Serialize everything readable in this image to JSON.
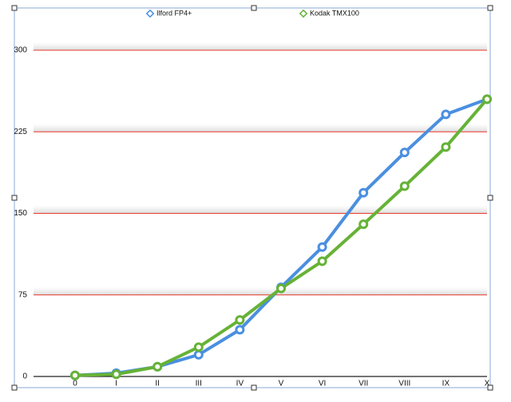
{
  "chart_data": {
    "type": "line",
    "categories": [
      "0",
      "I",
      "II",
      "III",
      "IV",
      "V",
      "VI",
      "VII",
      "VIII",
      "IX",
      "X"
    ],
    "series": [
      {
        "name": "Ilford FP4+",
        "color": "#4a8fe0",
        "values": [
          1,
          3,
          9,
          20,
          43,
          82,
          119,
          169,
          206,
          241,
          255
        ]
      },
      {
        "name": "Kodak  TMX100",
        "color": "#66b236",
        "values": [
          1,
          2,
          9,
          27,
          52,
          81,
          106,
          140,
          175,
          211,
          255
        ]
      }
    ],
    "ylim": [
      0,
      300
    ],
    "yticks": [
      0,
      75,
      150,
      225,
      300
    ],
    "grid": true,
    "grid_color": "#e8392c",
    "legend": "top"
  }
}
